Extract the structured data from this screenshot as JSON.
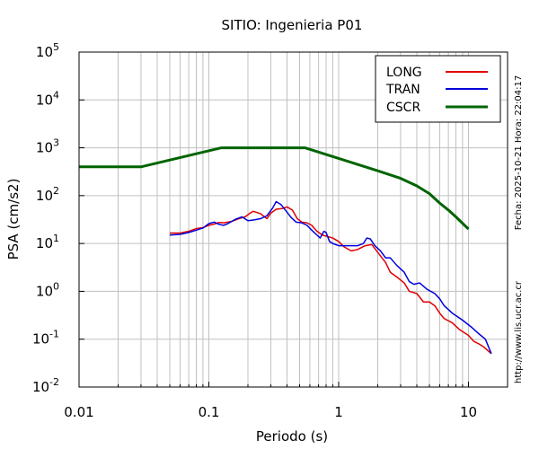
{
  "chart_data": {
    "type": "line",
    "title": "SITIO: Ingenieria P01",
    "xlabel": "Periodo (s)",
    "ylabel": "PSA (cm/s2)",
    "xscale": "log",
    "yscale": "log",
    "xlim": [
      0.01,
      20
    ],
    "ylim": [
      0.01,
      100000
    ],
    "x_ticks": [
      {
        "value": 0.01,
        "label": "0.01"
      },
      {
        "value": 0.1,
        "label": "0.1"
      },
      {
        "value": 1,
        "label": "1"
      },
      {
        "value": 10,
        "label": "10"
      }
    ],
    "y_ticks": [
      {
        "value": 0.01,
        "base": "10",
        "exp": "-2"
      },
      {
        "value": 0.1,
        "base": "10",
        "exp": "-1"
      },
      {
        "value": 1,
        "base": "10",
        "exp": "0"
      },
      {
        "value": 10,
        "base": "10",
        "exp": "1"
      },
      {
        "value": 100,
        "base": "10",
        "exp": "2"
      },
      {
        "value": 1000,
        "base": "10",
        "exp": "3"
      },
      {
        "value": 10000,
        "base": "10",
        "exp": "4"
      },
      {
        "value": 100000,
        "base": "10",
        "exp": "5"
      }
    ],
    "grid": true,
    "legend_position": "top-right",
    "series": [
      {
        "name": "LONG",
        "color": "#e00000",
        "points": [
          [
            0.05,
            16.5
          ],
          [
            0.06,
            16.5
          ],
          [
            0.07,
            18
          ],
          [
            0.08,
            20.5
          ],
          [
            0.09,
            21.5
          ],
          [
            0.1,
            24
          ],
          [
            0.11,
            25.5
          ],
          [
            0.12,
            27.5
          ],
          [
            0.13,
            27
          ],
          [
            0.14,
            28
          ],
          [
            0.15,
            29
          ],
          [
            0.17,
            33
          ],
          [
            0.19,
            36
          ],
          [
            0.21,
            44
          ],
          [
            0.22,
            47
          ],
          [
            0.25,
            42
          ],
          [
            0.28,
            33
          ],
          [
            0.3,
            43
          ],
          [
            0.33,
            52
          ],
          [
            0.37,
            54
          ],
          [
            0.4,
            58
          ],
          [
            0.44,
            50
          ],
          [
            0.48,
            33
          ],
          [
            0.52,
            28
          ],
          [
            0.57,
            27
          ],
          [
            0.62,
            24
          ],
          [
            0.68,
            18
          ],
          [
            0.75,
            15
          ],
          [
            0.82,
            14
          ],
          [
            0.9,
            13
          ],
          [
            1.0,
            11
          ],
          [
            1.1,
            8.5
          ],
          [
            1.25,
            7
          ],
          [
            1.4,
            7.5
          ],
          [
            1.6,
            9
          ],
          [
            1.8,
            9.5
          ],
          [
            2.0,
            6.5
          ],
          [
            2.3,
            4
          ],
          [
            2.5,
            2.5
          ],
          [
            2.8,
            2
          ],
          [
            3.2,
            1.5
          ],
          [
            3.5,
            1.0
          ],
          [
            4,
            0.9
          ],
          [
            4.5,
            0.6
          ],
          [
            5,
            0.6
          ],
          [
            5.5,
            0.5
          ],
          [
            6,
            0.35
          ],
          [
            6.5,
            0.27
          ],
          [
            7.5,
            0.22
          ],
          [
            8.5,
            0.16
          ],
          [
            10,
            0.12
          ],
          [
            11,
            0.09
          ],
          [
            12,
            0.08
          ],
          [
            13,
            0.07
          ],
          [
            15,
            0.05
          ]
        ]
      },
      {
        "name": "TRAN",
        "color": "#0000dd",
        "points": [
          [
            0.05,
            15
          ],
          [
            0.06,
            15.5
          ],
          [
            0.07,
            17
          ],
          [
            0.08,
            19
          ],
          [
            0.09,
            21
          ],
          [
            0.1,
            26
          ],
          [
            0.11,
            28
          ],
          [
            0.12,
            25
          ],
          [
            0.13,
            24
          ],
          [
            0.14,
            26
          ],
          [
            0.16,
            32
          ],
          [
            0.18,
            36
          ],
          [
            0.2,
            30
          ],
          [
            0.22,
            31
          ],
          [
            0.25,
            33
          ],
          [
            0.28,
            38
          ],
          [
            0.31,
            55
          ],
          [
            0.33,
            75
          ],
          [
            0.36,
            65
          ],
          [
            0.4,
            45
          ],
          [
            0.43,
            35
          ],
          [
            0.47,
            28
          ],
          [
            0.52,
            27
          ],
          [
            0.57,
            24
          ],
          [
            0.62,
            19
          ],
          [
            0.68,
            15
          ],
          [
            0.72,
            13
          ],
          [
            0.77,
            18
          ],
          [
            0.8,
            17
          ],
          [
            0.85,
            11
          ],
          [
            0.9,
            10
          ],
          [
            1.0,
            9
          ],
          [
            1.2,
            9
          ],
          [
            1.4,
            9
          ],
          [
            1.55,
            10
          ],
          [
            1.65,
            13
          ],
          [
            1.75,
            12.5
          ],
          [
            1.9,
            9
          ],
          [
            2.1,
            7
          ],
          [
            2.3,
            5
          ],
          [
            2.5,
            5
          ],
          [
            2.8,
            3.5
          ],
          [
            3.2,
            2.5
          ],
          [
            3.5,
            1.6
          ],
          [
            3.8,
            1.4
          ],
          [
            4.2,
            1.5
          ],
          [
            4.8,
            1.1
          ],
          [
            5.5,
            0.9
          ],
          [
            6,
            0.7
          ],
          [
            6.5,
            0.5
          ],
          [
            7.5,
            0.35
          ],
          [
            9,
            0.25
          ],
          [
            10.5,
            0.18
          ],
          [
            12,
            0.13
          ],
          [
            13.5,
            0.1
          ],
          [
            15,
            0.05
          ]
        ]
      },
      {
        "name": "CSCR",
        "color": "#006400",
        "points": [
          [
            0.01,
            400
          ],
          [
            0.03,
            400
          ],
          [
            0.125,
            1000
          ],
          [
            0.55,
            1000
          ],
          [
            1,
            600
          ],
          [
            2,
            330
          ],
          [
            3,
            230
          ],
          [
            4,
            160
          ],
          [
            5,
            110
          ],
          [
            6,
            70
          ],
          [
            7,
            50
          ],
          [
            8,
            36
          ],
          [
            10,
            20
          ]
        ]
      }
    ]
  },
  "side_notes": {
    "timestamp": "Fecha: 2025-10-21  Hora: 22:04:17",
    "website": "http://www.lis.ucr.ac.cr"
  }
}
